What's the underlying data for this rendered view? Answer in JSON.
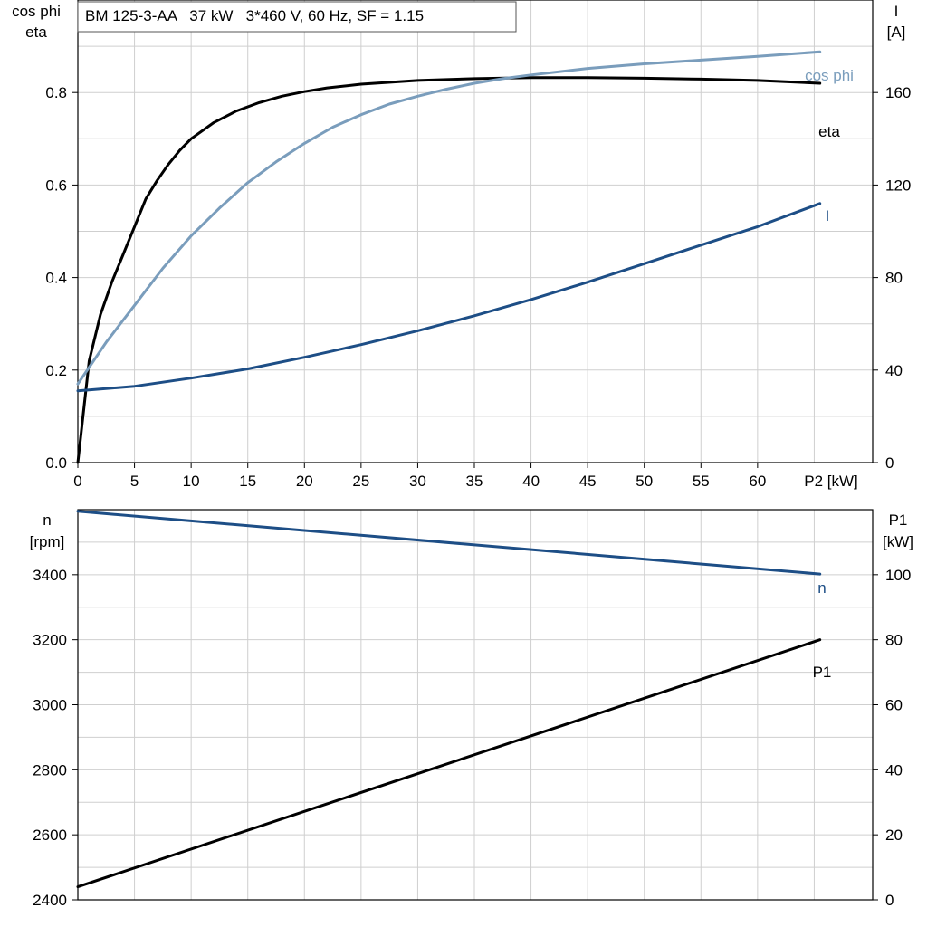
{
  "chart_data": [
    {
      "type": "line",
      "title": "BM 125-3-AA   37 kW   3*460 V, 60 Hz, SF = 1.15",
      "xlabel": "P2 [kW]",
      "xlim": [
        0,
        70
      ],
      "x_ticks": [
        0,
        5,
        10,
        15,
        20,
        25,
        30,
        35,
        40,
        45,
        50,
        55,
        60
      ],
      "y_left": {
        "label_line1": "cos phi",
        "label_line2": "eta",
        "lim": [
          0,
          1.0
        ],
        "ticks": [
          0.0,
          0.2,
          0.4,
          0.6,
          0.8
        ],
        "tick_labels": [
          "0.0",
          "0.2",
          "0.4",
          "0.6",
          "0.8"
        ]
      },
      "y_right": {
        "label_line1": "I",
        "label_line2": "[A]",
        "lim": [
          0,
          200
        ],
        "ticks": [
          0,
          40,
          80,
          120,
          160
        ],
        "tick_labels": [
          "0",
          "40",
          "80",
          "120",
          "160"
        ]
      },
      "grid": true,
      "series": [
        {
          "name": "eta",
          "axis": "left",
          "color": "#000000",
          "x": [
            0,
            1,
            2,
            3,
            4,
            5,
            6,
            7,
            8,
            9,
            10,
            12,
            14,
            16,
            18,
            20,
            22,
            25,
            30,
            35,
            40,
            45,
            50,
            55,
            60,
            65.5
          ],
          "y": [
            0.0,
            0.22,
            0.32,
            0.39,
            0.45,
            0.51,
            0.57,
            0.61,
            0.645,
            0.675,
            0.7,
            0.735,
            0.76,
            0.778,
            0.792,
            0.802,
            0.81,
            0.818,
            0.826,
            0.83,
            0.832,
            0.832,
            0.831,
            0.829,
            0.826,
            0.82
          ]
        },
        {
          "name": "cos phi",
          "axis": "left",
          "color": "#7a9dbc",
          "x": [
            0,
            2.5,
            5,
            7.5,
            10,
            12.5,
            15,
            17.5,
            20,
            22.5,
            25,
            27.5,
            30,
            32.5,
            35,
            37.5,
            40,
            45,
            50,
            55,
            60,
            65.5
          ],
          "y": [
            0.17,
            0.26,
            0.34,
            0.42,
            0.49,
            0.55,
            0.605,
            0.65,
            0.69,
            0.725,
            0.752,
            0.775,
            0.792,
            0.807,
            0.82,
            0.83,
            0.838,
            0.852,
            0.862,
            0.87,
            0.878,
            0.888
          ]
        },
        {
          "name": "I",
          "axis": "right",
          "color": "#1d4e86",
          "x": [
            0,
            5,
            10,
            15,
            20,
            25,
            30,
            35,
            40,
            45,
            50,
            55,
            60,
            65.5
          ],
          "y": [
            31,
            33,
            36.5,
            40.5,
            45.5,
            51,
            57,
            63.5,
            70.5,
            78,
            86,
            94,
            102,
            112
          ]
        }
      ]
    },
    {
      "type": "line",
      "xlim": [
        0,
        70
      ],
      "y_left": {
        "label_line1": "n",
        "label_line2": "[rpm]",
        "lim": [
          2400,
          3600
        ],
        "ticks": [
          2400,
          2600,
          2800,
          3000,
          3200,
          3400
        ],
        "tick_labels": [
          "2400",
          "2600",
          "2800",
          "3000",
          "3200",
          "3400"
        ]
      },
      "y_right": {
        "label_line1": "P1",
        "label_line2": "[kW]",
        "lim": [
          0,
          120
        ],
        "ticks": [
          0,
          20,
          40,
          60,
          80,
          100
        ],
        "tick_labels": [
          "0",
          "20",
          "40",
          "60",
          "80",
          "100"
        ]
      },
      "grid": true,
      "series": [
        {
          "name": "n",
          "axis": "left",
          "color": "#1d4e86",
          "x": [
            0,
            65.5
          ],
          "y": [
            3595,
            3402
          ]
        },
        {
          "name": "P1",
          "axis": "right",
          "color": "#000000",
          "x": [
            0,
            65.5
          ],
          "y": [
            4,
            80
          ]
        }
      ]
    }
  ]
}
